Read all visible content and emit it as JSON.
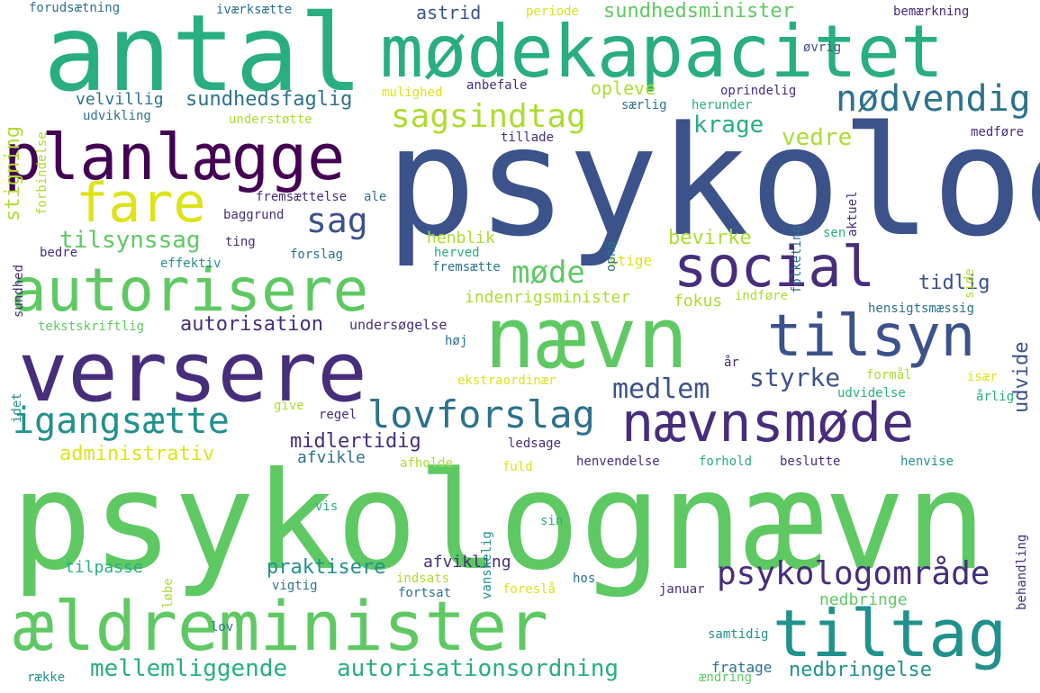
{
  "palette": {
    "purple": "#440154",
    "indigo": "#472d7b",
    "blue": "#3b528b",
    "steel": "#2c728e",
    "teal": "#21918c",
    "sea": "#28ae80",
    "green": "#5ec962",
    "lime": "#addc30",
    "yellow": "#dde318"
  },
  "words": {
    "psykolognaevn": "psykolognævn",
    "psykolog": "psykolog",
    "antal": "antal",
    "modekapacitet": "mødekapacitet",
    "versere": "versere",
    "naevn": "nævn",
    "aeldreminister": "ældreminister",
    "planlaegge": "planlægge",
    "autorisere": "autorisere",
    "social": "social",
    "tilsyn": "tilsyn",
    "naevnsmode": "nævnsmøde",
    "tiltag": "tiltag",
    "fare": "fare",
    "igangsaette": "igangsætte",
    "lovforslag": "lovforslag",
    "sagsindtag": "sagsindtag",
    "nodvendig": "nødvendig",
    "psykologomrade": "psykologområde",
    "sag": "sag",
    "medlem": "medlem",
    "mode": "møde",
    "autorisationsordning": "autorisationsordning",
    "mellemliggende": "mellemliggende",
    "tilsynssag": "tilsynssag",
    "styrke": "styrke",
    "sundhedsminister": "sundhedsminister",
    "sundhedsfaglig": "sundhedsfaglig",
    "autorisation": "autorisation",
    "administrativ": "administrativ",
    "midlertidig": "midlertidig",
    "praktisere": "praktisere",
    "nedbringelse": "nedbringelse",
    "krage": "krage",
    "vedre": "vedre",
    "udvide": "udvide",
    "tidlig": "tidlig",
    "bevirke": "bevirke",
    "astrid": "astrid",
    "opleve": "opleve",
    "stigning": "stigning",
    "velvillig": "velvillig",
    "afvikling": "afvikling",
    "afvikle": "afvikle",
    "henblik": "henblik",
    "indenrigsminister": "indenrigsminister",
    "fokus": "fokus",
    "tilpasse": "tilpasse",
    "nedbringe": "nedbringe",
    "fratage": "fratage",
    "forudsaetning": "forudsætning",
    "ivaerksaette": "iværksætte",
    "periode": "periode",
    "bemaerkning": "bemærkning",
    "ovrig": "øvrig",
    "mulighed": "mulighed",
    "anbefale": "anbefale",
    "oprindelig": "oprindelig",
    "udvikling": "udvikling",
    "understotte": "understøtte",
    "saerlig": "særlig",
    "herunder": "herunder",
    "tillade": "tillade",
    "medfore": "medføre",
    "aktuel": "aktuel",
    "folketing": "folketing",
    "fremsaettelse": "fremsættelse",
    "ale": "ale",
    "baggrund": "baggrund",
    "sundhed": "sundhed",
    "ting": "ting",
    "bedre": "bedre",
    "effektiv": "effektiv",
    "forslag": "forslag",
    "herved": "herved",
    "fremsaette": "fremsætte",
    "stige": "stige",
    "opna": "opnå",
    "sen": "sen",
    "side": "side",
    "indfore": "indføre",
    "hensigtsmaessig": "hensigtsmæssig",
    "tekstskriftlig": "tekstskriftlig",
    "undersogelse": "undersøgelse",
    "hoj": "høj",
    "ar": "år",
    "formal": "formål",
    "isaer": "især",
    "arlig": "årlig",
    "udvidelse": "udvidelse",
    "idet": "idet",
    "ekstraordinaer": "ekstraordinær",
    "give": "give",
    "regel": "regel",
    "ledsage": "ledsage",
    "afholde": "afholde",
    "fuld": "fuld",
    "henvendelse": "henvendelse",
    "forhold": "forhold",
    "beslutte": "beslutte",
    "henvise": "henvise",
    "behandling": "behandling",
    "vanskelig": "vanskelig",
    "vis": "vis",
    "sin": "sin",
    "lobe": "løbe",
    "indsats": "indsats",
    "vigtig": "vigtig",
    "fortsat": "fortsat",
    "foresla": "foreslå",
    "hos": "hos",
    "januar": "januar",
    "lov": "lov",
    "samtidig": "samtidig",
    "raekke": "række",
    "aendring": "ændring",
    "forbindelse": "forbindelse"
  }
}
